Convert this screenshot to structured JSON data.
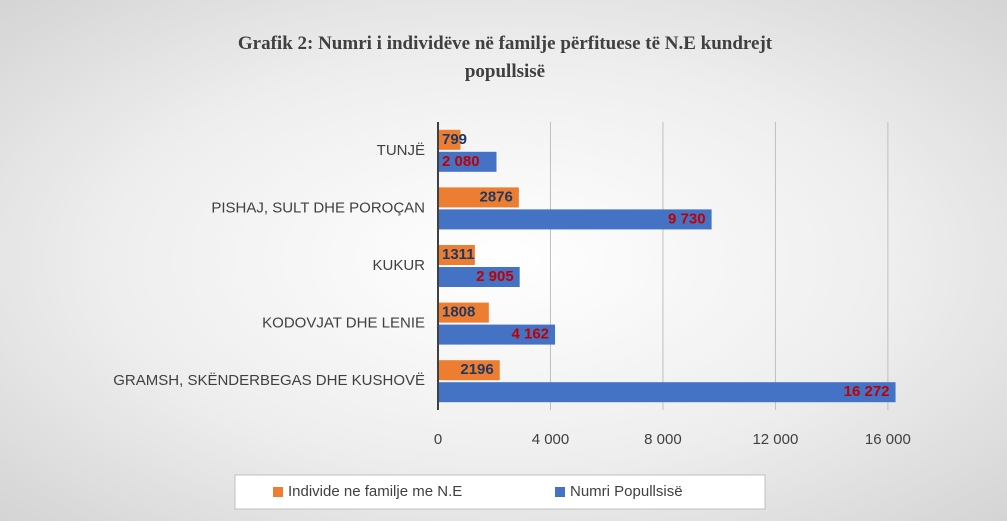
{
  "chart_data": {
    "type": "bar",
    "orientation": "horizontal",
    "title": "Grafik 2: Numri i individëve në familje përfituese të N.E kundrejt popullsisë",
    "categories": [
      "TUNJË",
      "PISHAJ, SULT DHE POROÇAN",
      "KUKUR",
      "KODOVJAT DHE LENIE",
      "GRAMSH, SKËNDERBEGAS DHE KUSHOVË"
    ],
    "series": [
      {
        "name": "Individe ne familje me N.E",
        "color": "#ed7d31",
        "values": [
          799,
          2876,
          1311,
          1808,
          2196
        ]
      },
      {
        "name": "Numri Popullsisë",
        "color": "#4472c4",
        "values": [
          2080,
          9730,
          2905,
          4162,
          16272
        ],
        "value_labels": [
          "2 080",
          "9 730",
          "2 905",
          "4 162",
          "16 272"
        ]
      }
    ],
    "xlim": [
      0,
      17000
    ],
    "xticks": [
      0,
      {
        "value": 4000,
        "label": "4 000"
      },
      {
        "value": 8000,
        "label": "8 000"
      },
      {
        "value": 12000,
        "label": "12 000"
      },
      {
        "value": 16000,
        "label": "16 000"
      }
    ],
    "grid": true,
    "legend": "bottom"
  }
}
